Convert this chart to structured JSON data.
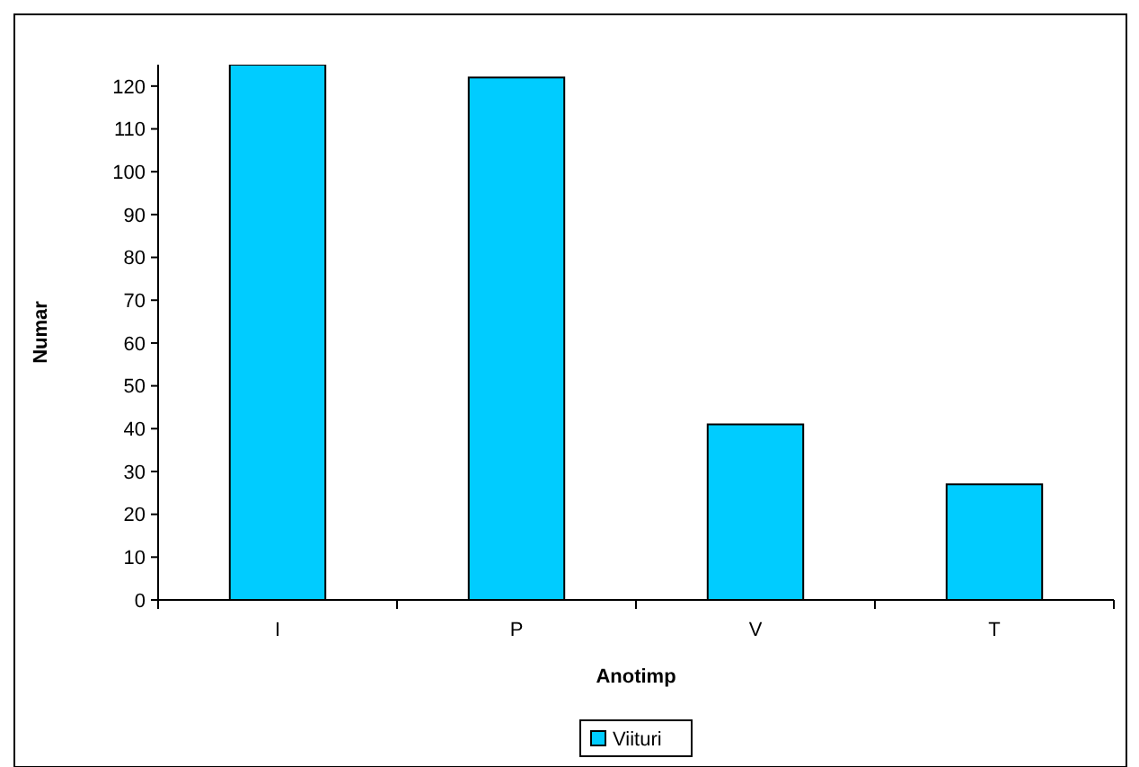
{
  "chart_data": {
    "type": "bar",
    "xlabel": "Anotimp",
    "ylabel": "Numar",
    "categories": [
      "I",
      "P",
      "V",
      "T"
    ],
    "series": [
      {
        "name": "Viituri",
        "color": "#00ccff",
        "values": [
          125,
          122,
          41,
          27
        ]
      }
    ],
    "ylim": [
      0,
      125
    ],
    "yticks": [
      0,
      10,
      20,
      30,
      40,
      50,
      60,
      70,
      80,
      90,
      100,
      110,
      120
    ],
    "grid": false,
    "legend": "bottom"
  }
}
